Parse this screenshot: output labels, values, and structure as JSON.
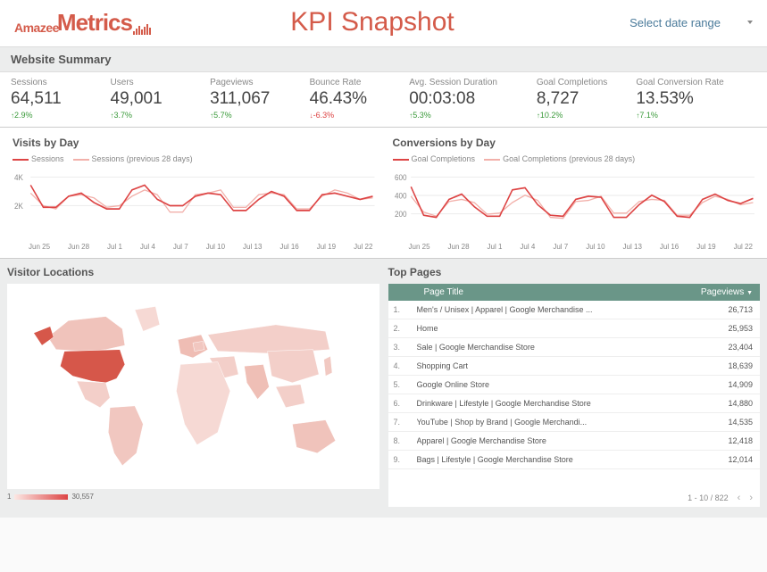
{
  "brand": {
    "amazee": "Amazee",
    "metrics": "Metrics"
  },
  "title": "KPI Snapshot",
  "date_selector": "Select date range",
  "summary_title": "Website Summary",
  "kpis": [
    {
      "label": "Sessions",
      "value": "64,511",
      "delta": "2.9%",
      "dir": "up"
    },
    {
      "label": "Users",
      "value": "49,001",
      "delta": "3.7%",
      "dir": "up"
    },
    {
      "label": "Pageviews",
      "value": "311,067",
      "delta": "5.7%",
      "dir": "up"
    },
    {
      "label": "Bounce Rate",
      "value": "46.43%",
      "delta": "-6.3%",
      "dir": "down"
    },
    {
      "label": "Avg. Session Duration",
      "value": "00:03:08",
      "delta": "5.3%",
      "dir": "up"
    },
    {
      "label": "Goal Completions",
      "value": "8,727",
      "delta": "10.2%",
      "dir": "up"
    },
    {
      "label": "Goal Conversion Rate",
      "value": "13.53%",
      "delta": "7.1%",
      "dir": "up"
    }
  ],
  "visits_chart": {
    "title": "Visits by Day",
    "legend": [
      "Sessions",
      "Sessions (previous 28 days)"
    ],
    "ylabels": [
      "4K",
      "2K"
    ],
    "y_positions": [
      10,
      38
    ],
    "xlabels": [
      "Jun 25",
      "Jun 28",
      "Jul 1",
      "Jul 4",
      "Jul 7",
      "Jul 10",
      "Jul 13",
      "Jul 16",
      "Jul 19",
      "Jul 22"
    ],
    "series1": [
      3100,
      1700,
      1700,
      2400,
      2600,
      2000,
      1600,
      1600,
      2800,
      3100,
      2200,
      1800,
      1800,
      2400,
      2600,
      2500,
      1500,
      1500,
      2200,
      2700,
      2400,
      1500,
      1500,
      2500,
      2600,
      2400,
      2200,
      2400
    ],
    "series2": [
      2600,
      1800,
      1600,
      2400,
      2500,
      2300,
      1700,
      1800,
      2400,
      2800,
      2500,
      1400,
      1400,
      2500,
      2600,
      2800,
      1700,
      1700,
      2500,
      2600,
      2500,
      1600,
      1600,
      2400,
      2800,
      2600,
      2200,
      2300
    ],
    "ymax": 4000,
    "colors": {
      "s1": "#d44",
      "s2": "#f2b0aa",
      "grid": "#eee",
      "axis_text": "#888"
    }
  },
  "conv_chart": {
    "title": "Conversions by Day",
    "legend": [
      "Goal Completions",
      "Goal Completions (previous 28 days)"
    ],
    "ylabels": [
      "600",
      "400",
      "200"
    ],
    "y_positions": [
      10,
      28,
      46
    ],
    "xlabels": [
      "Jun 25",
      "Jun 28",
      "Jul 1",
      "Jul 4",
      "Jul 7",
      "Jul 10",
      "Jul 13",
      "Jul 16",
      "Jul 19",
      "Jul 22"
    ],
    "series1": [
      450,
      180,
      160,
      330,
      380,
      260,
      170,
      170,
      420,
      440,
      280,
      180,
      170,
      330,
      360,
      350,
      160,
      160,
      280,
      370,
      310,
      170,
      160,
      330,
      380,
      320,
      290,
      340
    ],
    "series2": [
      360,
      210,
      170,
      310,
      330,
      300,
      190,
      200,
      300,
      370,
      320,
      160,
      150,
      310,
      320,
      360,
      200,
      200,
      310,
      330,
      320,
      180,
      180,
      300,
      360,
      330,
      280,
      300
    ],
    "ymax": 600,
    "colors": {
      "s1": "#d44",
      "s2": "#f2b0aa",
      "grid": "#eee",
      "axis_text": "#888"
    }
  },
  "visitor_locations": {
    "title": "Visitor Locations",
    "scale_min": "1",
    "scale_max": "30,557",
    "colors": {
      "base": "#f6d9d4",
      "light": "#f3cfc9",
      "us": "#d6574a",
      "canada": "#f0c3bb",
      "brazil": "#f1c7c0",
      "uk": "#efbdb4",
      "india": "#efbfb6",
      "australia": "#f0c3bb",
      "germany": "#f1c7c0",
      "japan": "#f1c9c2",
      "stroke": "#ffffff"
    }
  },
  "top_pages": {
    "title": "Top Pages",
    "header_title": "Page Title",
    "header_views": "Pageviews",
    "rows": [
      {
        "rank": "1.",
        "title": "Men's / Unisex | Apparel | Google Merchandise ...",
        "views": "26,713"
      },
      {
        "rank": "2.",
        "title": "Home",
        "views": "25,953"
      },
      {
        "rank": "3.",
        "title": "Sale | Google Merchandise Store",
        "views": "23,404"
      },
      {
        "rank": "4.",
        "title": "Shopping Cart",
        "views": "18,639"
      },
      {
        "rank": "5.",
        "title": "Google Online Store",
        "views": "14,909"
      },
      {
        "rank": "6.",
        "title": "Drinkware | Lifestyle | Google Merchandise Store",
        "views": "14,880"
      },
      {
        "rank": "7.",
        "title": "YouTube | Shop by Brand | Google Merchandi...",
        "views": "14,535"
      },
      {
        "rank": "8.",
        "title": "Apparel | Google Merchandise Store",
        "views": "12,418"
      },
      {
        "rank": "9.",
        "title": "Bags | Lifestyle | Google Merchandise Store",
        "views": "12,014"
      }
    ],
    "footer": "1 - 10 / 822",
    "header_bg": "#6a9688"
  }
}
